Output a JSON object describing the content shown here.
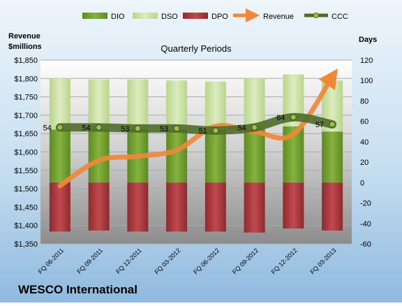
{
  "company": "WESCO International",
  "chart_data": {
    "type": "bar",
    "subtitle": "Quarterly Periods",
    "left_axis": {
      "label_line1": "Revenue",
      "label_line2": "$millions",
      "ylim": [
        1350,
        1850
      ],
      "ticks": [
        "$1,350",
        "$1,400",
        "$1,450",
        "$1,500",
        "$1,550",
        "$1,600",
        "$1,650",
        "$1,700",
        "$1,750",
        "$1,800",
        "$1,850"
      ]
    },
    "right_axis": {
      "label": "Days",
      "ylim": [
        -60,
        120
      ],
      "ticks": [
        "-60",
        "-40",
        "-20",
        "0",
        "20",
        "40",
        "60",
        "80",
        "100",
        "120"
      ]
    },
    "categories": [
      "FQ 06-2011",
      "FQ 09-2011",
      "FQ 12-2011",
      "FQ 03-2012",
      "FQ 06-2012",
      "FQ 09-2012",
      "FQ 12-2012",
      "FQ 03-2013"
    ],
    "legend": [
      "DIO",
      "DSO",
      "DPO",
      "Revenue",
      "CCC"
    ],
    "colors": {
      "DIO": "#6f9a2e",
      "DSO": "#c9e0a0",
      "DPO": "#a8383c",
      "Revenue": "#f0883a",
      "CCC": "#4f6b2a"
    },
    "series": [
      {
        "name": "DIO",
        "axis": "right",
        "values": [
          52,
          52,
          52,
          52,
          52,
          52,
          55,
          50
        ]
      },
      {
        "name": "DSO",
        "axis": "right",
        "values": [
          50,
          49,
          49,
          48,
          47,
          50,
          51,
          50
        ]
      },
      {
        "name": "DPO",
        "axis": "right",
        "values": [
          -48,
          -47,
          -48,
          -48,
          -48,
          -49,
          -45,
          -47
        ]
      },
      {
        "name": "Revenue",
        "axis": "left",
        "values": [
          1508,
          1577,
          1588,
          1605,
          1670,
          1655,
          1648,
          1805
        ]
      },
      {
        "name": "CCC",
        "axis": "right",
        "values": [
          54,
          54,
          53,
          53,
          51,
          54,
          64,
          57
        ]
      }
    ],
    "ccc_labels": [
      "54",
      "54",
      "53",
      "53",
      "51",
      "54",
      "64",
      "57"
    ]
  }
}
